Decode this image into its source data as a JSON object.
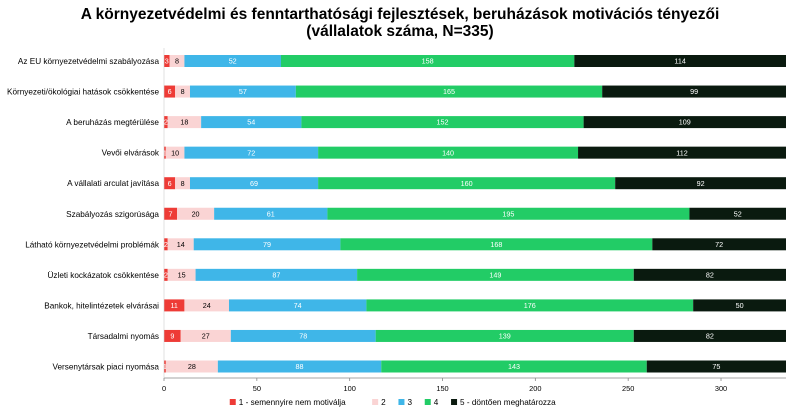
{
  "chart_data": {
    "type": "bar",
    "orientation": "horizontal",
    "stacked": true,
    "title": "A környezetvédelmi és fenntarthatósági fejlesztések, beruházások motivációs tényezői",
    "subtitle": "(vállalatok száma, N=335)",
    "categories": [
      "Az EU környezetvédelmi szabályozása",
      "Környezeti/ökológiai hatások csökkentése",
      "A beruházás megtérülése",
      "Vevői elvárások",
      "A vállalati arculat javítása",
      "Szabályozás szigorúsága",
      "Látható környezetvédelmi problémák",
      "Üzleti kockázatok csökkentése",
      "Bankok, hitelintézetek elvárásai",
      "Társadalmi nyomás",
      "Versenytársak piaci nyomása"
    ],
    "series": [
      {
        "name": "1 - semennyire nem motiválja",
        "color": "#ee3b36",
        "label_color": "#ffffff",
        "values": [
          3,
          6,
          2,
          1,
          6,
          7,
          2,
          2,
          11,
          9,
          1
        ]
      },
      {
        "name": "2",
        "color": "#fad4d4",
        "label_color": "#000000",
        "values": [
          8,
          8,
          18,
          10,
          8,
          20,
          14,
          15,
          24,
          27,
          28
        ]
      },
      {
        "name": "3",
        "color": "#3fb6e8",
        "label_color": "#ffffff",
        "values": [
          52,
          57,
          54,
          72,
          69,
          61,
          79,
          87,
          74,
          78,
          88
        ]
      },
      {
        "name": "4",
        "color": "#22cc66",
        "label_color": "#ffffff",
        "values": [
          158,
          165,
          152,
          140,
          160,
          195,
          168,
          149,
          176,
          139,
          143
        ]
      },
      {
        "name": "5 - döntően meghatározza",
        "color": "#0a1a0f",
        "label_color": "#ffffff",
        "values": [
          114,
          99,
          109,
          112,
          92,
          52,
          72,
          82,
          50,
          82,
          75
        ]
      }
    ],
    "x_ticks": [
      0,
      50,
      100,
      150,
      200,
      250,
      300
    ],
    "xlim": [
      0,
      335
    ],
    "grid": false,
    "legend_position": "bottom"
  }
}
